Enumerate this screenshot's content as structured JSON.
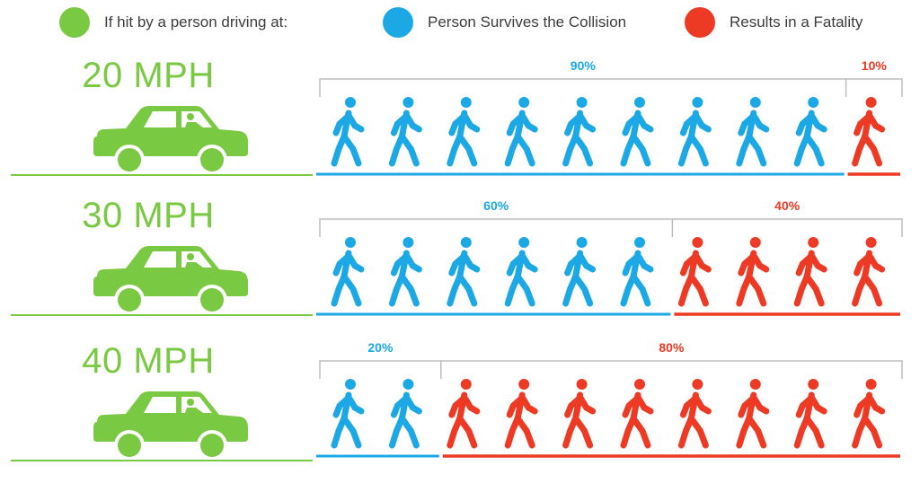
{
  "colors": {
    "green": "#7ac943",
    "blue": "#1ba8e4",
    "red": "#ed3a24",
    "bracket": "#bdbdbd"
  },
  "legend": {
    "driving_label": "If hit by a person driving at:",
    "survives_label": "Person Survives the Collision",
    "fatality_label": "Results in a Fatality"
  },
  "chart_data": {
    "type": "pictograph",
    "people_per_row": 10,
    "series": [
      {
        "name": "Person Survives the Collision",
        "color": "#1ba8e4"
      },
      {
        "name": "Results in a Fatality",
        "color": "#ed3a24"
      }
    ],
    "rows": [
      {
        "speed": "20 MPH",
        "survive": 9,
        "fatal": 1,
        "survive_label": "90%",
        "fatal_label": "10%"
      },
      {
        "speed": "30 MPH",
        "survive": 6,
        "fatal": 4,
        "survive_label": "60%",
        "fatal_label": "40%"
      },
      {
        "speed": "40 MPH",
        "survive": 2,
        "fatal": 8,
        "survive_label": "20%",
        "fatal_label": "80%"
      }
    ]
  }
}
